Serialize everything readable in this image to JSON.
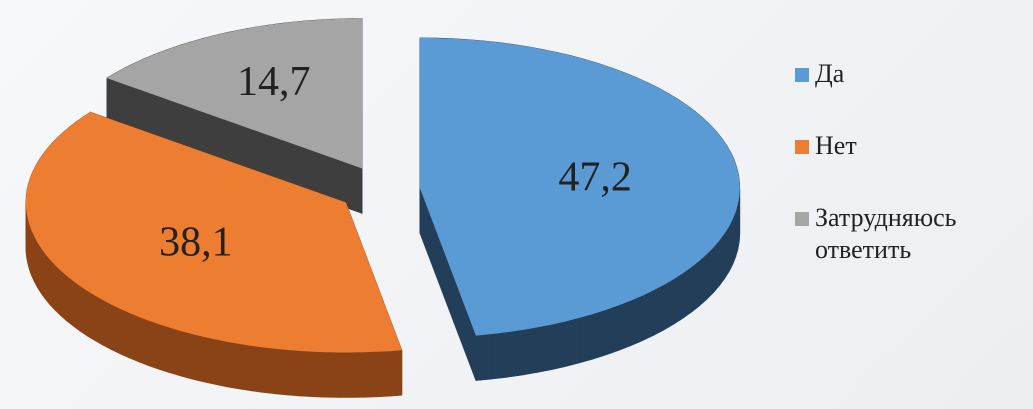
{
  "chart_data": {
    "type": "pie3d",
    "categories": [
      "Да",
      "Нет",
      "Затрудняюсь ответить"
    ],
    "values": [
      47.2,
      38.1,
      14.7
    ],
    "value_labels": [
      "47,2",
      "38,1",
      "14,7"
    ],
    "colors": [
      "#5b9bd5",
      "#ed7d31",
      "#a5a5a5"
    ],
    "side_colors": [
      "#223e58",
      "#8a4317",
      "#3e3e3e"
    ],
    "legend": "right"
  }
}
